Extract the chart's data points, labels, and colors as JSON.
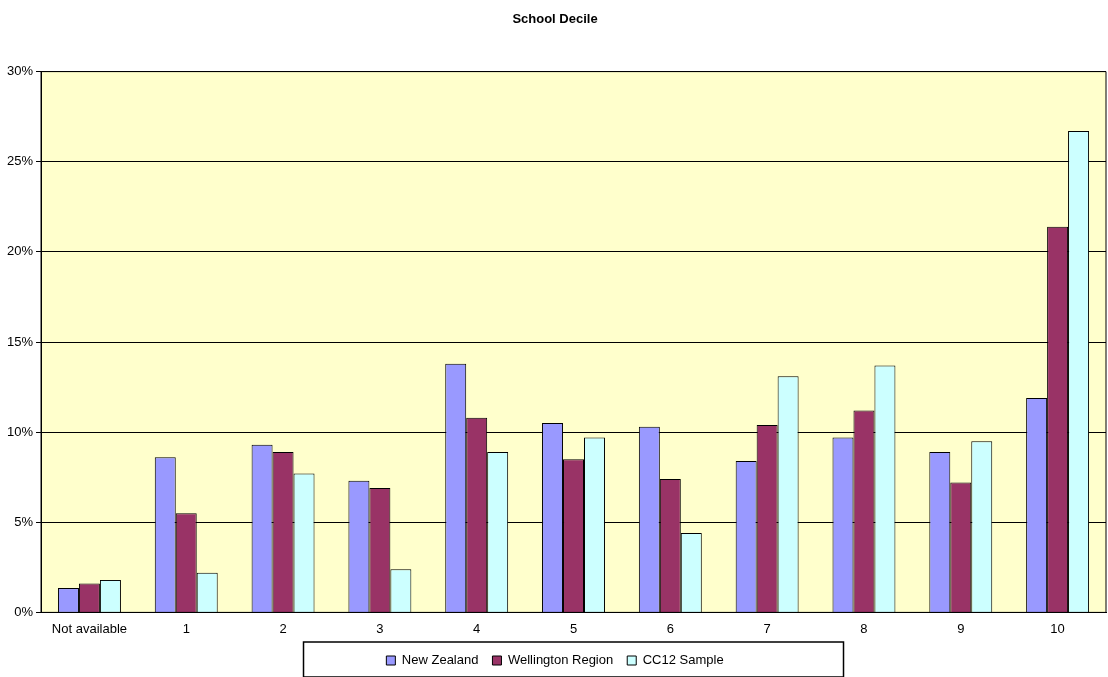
{
  "chart_data": {
    "type": "bar",
    "title": "School Decile",
    "categories": [
      "Not available",
      "1",
      "2",
      "3",
      "4",
      "5",
      "6",
      "7",
      "8",
      "9",
      "10"
    ],
    "series": [
      {
        "name": "New Zealand",
        "color": "#9999ff",
        "values": [
          1.35,
          8.6,
          9.3,
          7.3,
          13.8,
          10.5,
          10.3,
          8.4,
          9.7,
          8.9,
          11.9
        ]
      },
      {
        "name": "Wellington Region",
        "color": "#993366",
        "values": [
          1.6,
          5.5,
          8.9,
          6.9,
          10.8,
          8.5,
          7.4,
          10.4,
          11.2,
          7.2,
          21.4
        ]
      },
      {
        "name": "CC12 Sample",
        "color": "#ccffff",
        "values": [
          1.8,
          2.2,
          7.7,
          2.4,
          8.9,
          9.7,
          4.4,
          13.1,
          13.7,
          9.5,
          26.7
        ]
      }
    ],
    "ylim": [
      0,
      30
    ],
    "yticks": [
      {
        "value": 0,
        "label": "0%"
      },
      {
        "value": 5,
        "label": "5%"
      },
      {
        "value": 10,
        "label": "10%"
      },
      {
        "value": 15,
        "label": "15%"
      },
      {
        "value": 20,
        "label": "20%"
      },
      {
        "value": 25,
        "label": "25%"
      },
      {
        "value": 30,
        "label": "30%"
      }
    ],
    "grid": "y",
    "legend": "bottom"
  }
}
